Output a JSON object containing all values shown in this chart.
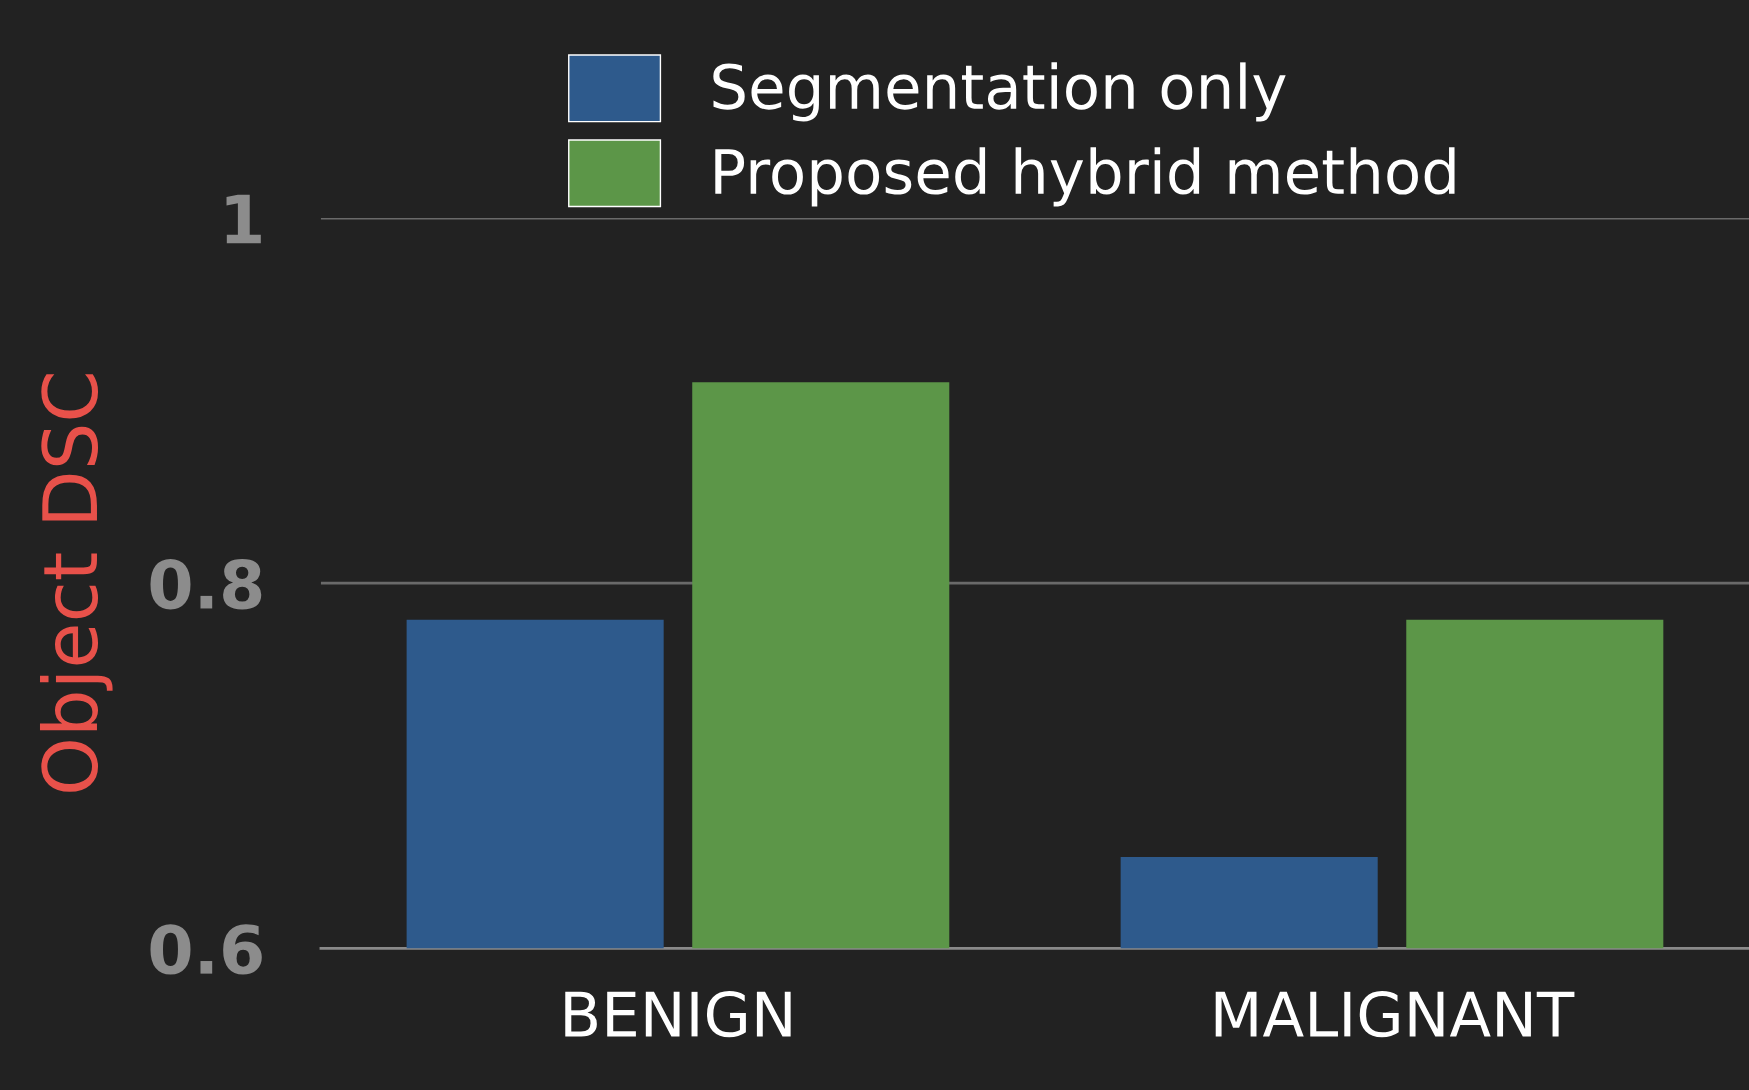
{
  "chart_data": {
    "type": "bar",
    "ylabel": "Object DSC",
    "categories": [
      "BENIGN",
      "MALIGNANT"
    ],
    "series": [
      {
        "name": "Segmentation only",
        "color": "#2e5a8c",
        "values": [
          0.78,
          0.65
        ]
      },
      {
        "name": "Proposed hybrid method",
        "color": "#5c9648",
        "values": [
          0.91,
          0.78
        ]
      }
    ],
    "ylim": [
      0.6,
      1.0
    ],
    "yticks": [
      0.6,
      0.8,
      1
    ],
    "grid": "y",
    "legend": "top"
  }
}
